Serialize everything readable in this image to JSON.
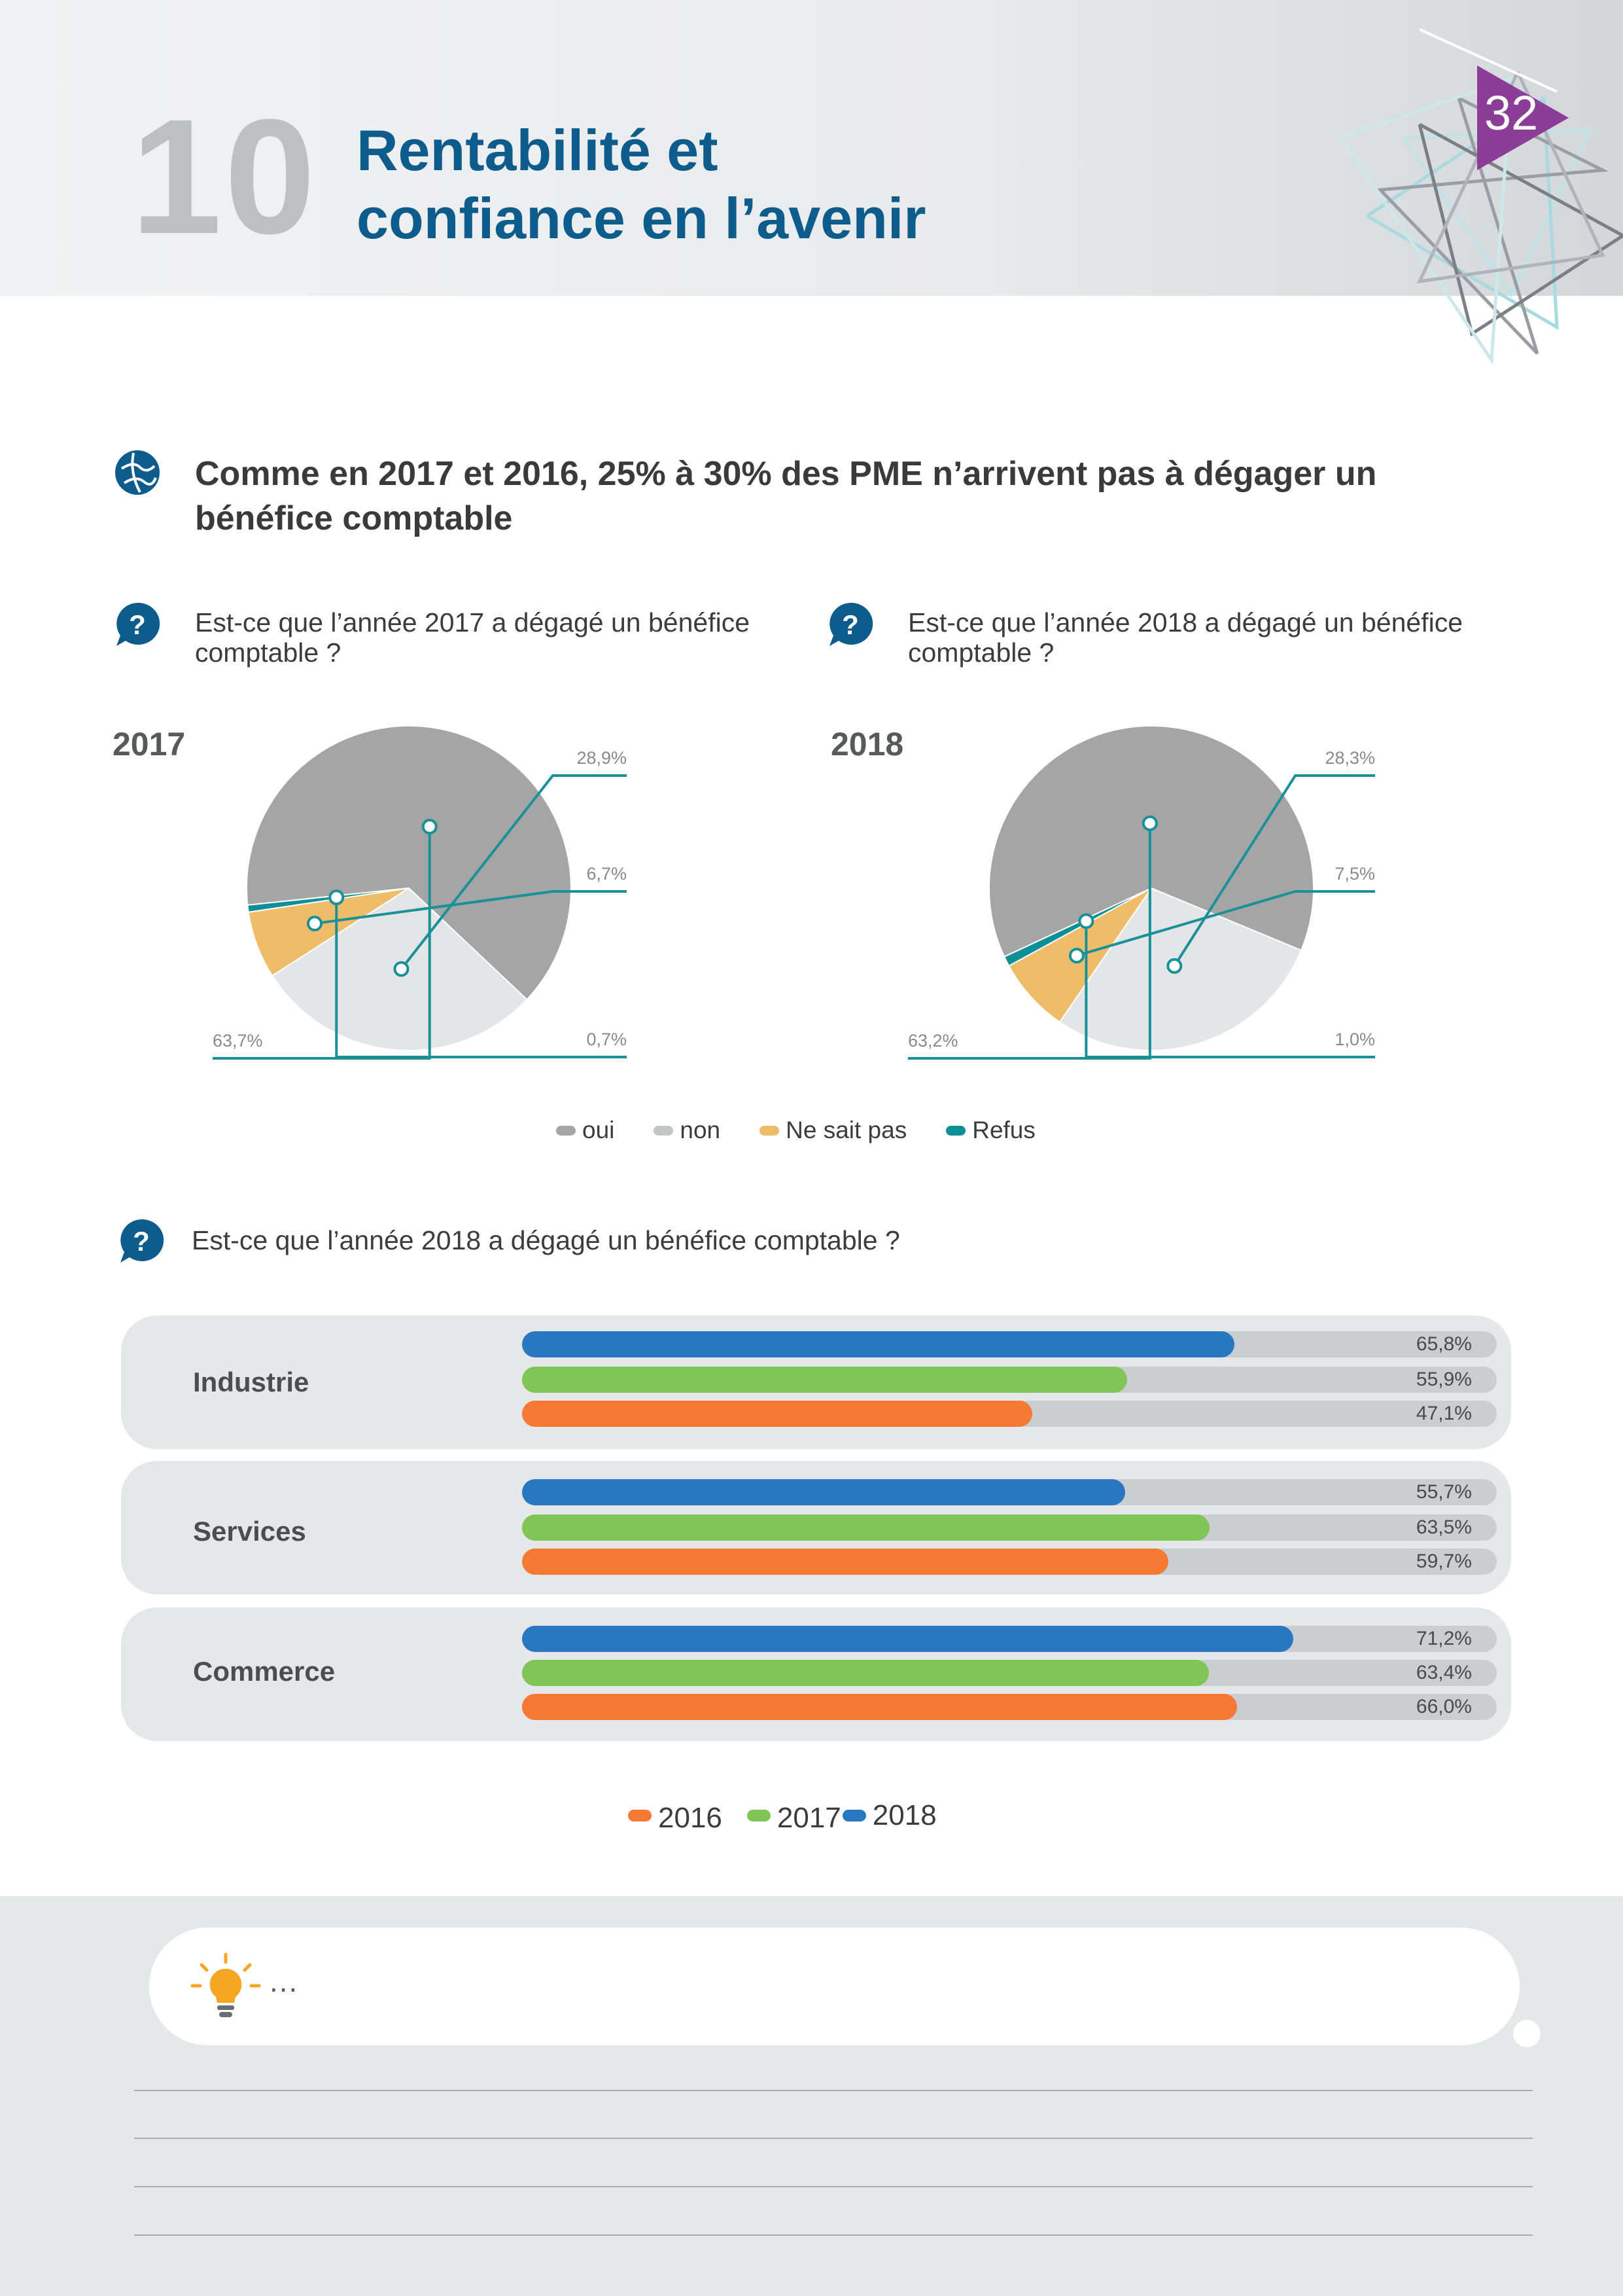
{
  "header": {
    "section_number": "10",
    "title": "Rentabilité et\nconfiance en l’avenir",
    "page_number": "32"
  },
  "headline": "Comme en 2017 et 2016, 25% à 30% des PME n’arrivent pas à dégager un bénéfice comptable",
  "questions": {
    "q2017": "Est-ce que l’année 2017 a dégagé un bénéfice\ncomptable ?",
    "q2018": "Est-ce que l’année 2018 a dégagé un bénéfice\n comptable ?",
    "q_sector": "Est-ce que l’année 2018 a dégagé un bénéfice comptable ?"
  },
  "chart_data": [
    {
      "type": "pie",
      "title": "2017",
      "categories": [
        "oui",
        "non",
        "Ne sait pas",
        "Refus"
      ],
      "values": [
        63.7,
        28.9,
        6.7,
        0.7
      ],
      "value_labels": [
        "63,7%",
        "28,9%",
        "6,7%",
        "0,7%"
      ],
      "colors": [
        "#a5a5a5",
        "#e4e5e7",
        "#efbd6a",
        "#0e8f97"
      ]
    },
    {
      "type": "pie",
      "title": "2018",
      "categories": [
        "oui",
        "non",
        "Ne sait pas",
        "Refus"
      ],
      "values": [
        63.2,
        28.3,
        7.5,
        1.0
      ],
      "value_labels": [
        "63,2%",
        "28,3%",
        "7,5%",
        "1,0%"
      ],
      "colors": [
        "#a5a5a5",
        "#e4e5e7",
        "#efbd6a",
        "#0e8f97"
      ]
    },
    {
      "type": "bar",
      "orientation": "horizontal",
      "categories": [
        "Industrie",
        "Services",
        "Commerce"
      ],
      "series": [
        {
          "name": "2018",
          "color": "#2877c0",
          "values": [
            65.8,
            55.7,
            71.2
          ],
          "labels": [
            "65,8%",
            "55,7%",
            "71,2%"
          ]
        },
        {
          "name": "2017",
          "color": "#82c557",
          "values": [
            55.9,
            63.5,
            63.4
          ],
          "labels": [
            "55,9%",
            "63,5%",
            "63,4%"
          ]
        },
        {
          "name": "2016",
          "color": "#f37934",
          "values": [
            47.1,
            59.7,
            66.0
          ],
          "labels": [
            "47,1%",
            "59,7%",
            "66,0%"
          ]
        }
      ],
      "xlim": [
        0,
        90
      ]
    }
  ],
  "pie_legend": [
    {
      "label": "oui",
      "color": "#a5a5a5"
    },
    {
      "label": "non",
      "color": "#c4c5c7"
    },
    {
      "label": "Ne sait pas",
      "color": "#efbd6a"
    },
    {
      "label": "Refus",
      "color": "#0e8f97"
    }
  ],
  "bar_legend": [
    {
      "label": "2016",
      "color": "#f37934"
    },
    {
      "label": "2017",
      "color": "#82c557"
    },
    {
      "label": "2018",
      "color": "#2877c0"
    }
  ],
  "notes": {
    "ellipsis": "..."
  },
  "colors": {
    "title_blue": "#0d5c8c",
    "badge_purple": "#8b3d97",
    "leader_teal": "#1a9098"
  }
}
